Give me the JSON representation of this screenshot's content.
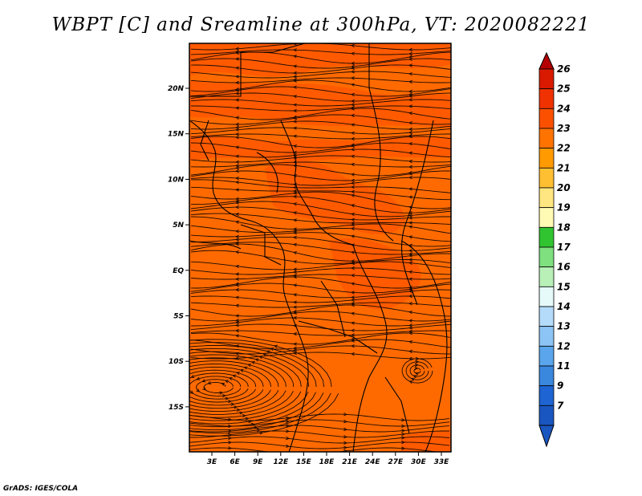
{
  "title": "WBPT [C] and Sreamline at 300hPa, VT: 2020082221",
  "credit": "GrADS: IGES/COLA",
  "map": {
    "variable": "WBPT",
    "units": "C",
    "level": "300hPa",
    "valid_time": "2020082221",
    "lon_labels": [
      "3E",
      "6E",
      "9E",
      "12E",
      "15E",
      "18E",
      "21E",
      "24E",
      "27E",
      "30E",
      "33E"
    ],
    "lat_labels": [
      "20N",
      "15N",
      "10N",
      "5N",
      "EQ",
      "5S",
      "10S",
      "15S"
    ],
    "colors": {
      "base": "#ff6a00",
      "warm": "#ff4d00",
      "light": "#ff8a10"
    }
  },
  "colorbar": {
    "labels": [
      "26",
      "25",
      "24",
      "23",
      "22",
      "21",
      "20",
      "19",
      "18",
      "17",
      "16",
      "15",
      "14",
      "13",
      "12",
      "11",
      "9",
      "7"
    ],
    "colors": [
      "#b40000",
      "#d91a00",
      "#f03200",
      "#fa5000",
      "#ff7300",
      "#ff9a00",
      "#ffbf33",
      "#ffe680",
      "#fffab4",
      "#31c431",
      "#7ee07e",
      "#b8f0b8",
      "#e6fafa",
      "#b4dcfa",
      "#8cc4f5",
      "#5aa5eb",
      "#3a87de",
      "#1e64d2",
      "#1a56c0"
    ]
  }
}
